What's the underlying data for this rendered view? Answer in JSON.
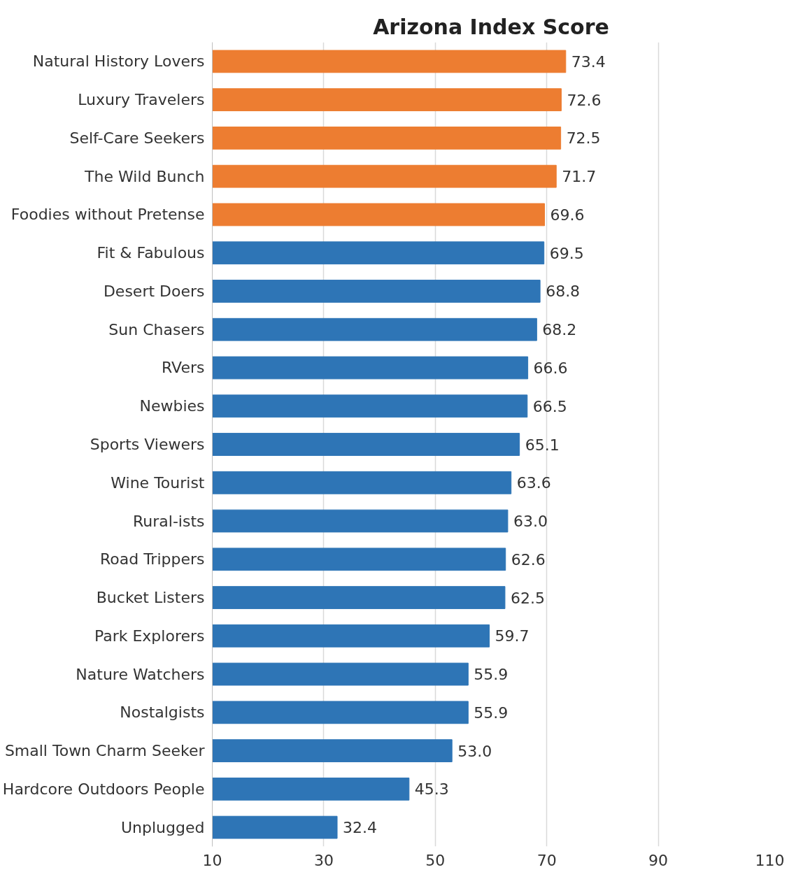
{
  "chart_data": {
    "type": "bar",
    "orientation": "horizontal",
    "title": "Arizona Index Score",
    "categories": [
      "Natural History Lovers",
      "Luxury Travelers",
      "Self-Care Seekers",
      "The Wild Bunch",
      "Foodies without Pretense",
      "Fit & Fabulous",
      "Desert Doers",
      "Sun Chasers",
      "RVers",
      "Newbies",
      "Sports Viewers",
      "Wine Tourist",
      "Rural-ists",
      "Road Trippers",
      "Bucket Listers",
      "Park Explorers",
      "Nature Watchers",
      "Nostalgists",
      "Small Town Charm Seeker",
      "Hardcore Outdoors People",
      "Unplugged"
    ],
    "values": [
      73.4,
      72.6,
      72.5,
      71.7,
      69.6,
      69.5,
      68.8,
      68.2,
      66.6,
      66.5,
      65.1,
      63.6,
      63.0,
      62.6,
      62.5,
      59.7,
      55.9,
      55.9,
      53.0,
      45.3,
      32.4
    ],
    "colors": [
      "#ed7d31",
      "#ed7d31",
      "#ed7d31",
      "#ed7d31",
      "#ed7d31",
      "#2e75b6",
      "#2e75b6",
      "#2e75b6",
      "#2e75b6",
      "#2e75b6",
      "#2e75b6",
      "#2e75b6",
      "#2e75b6",
      "#2e75b6",
      "#2e75b6",
      "#2e75b6",
      "#2e75b6",
      "#2e75b6",
      "#2e75b6",
      "#2e75b6",
      "#2e75b6"
    ],
    "value_labels": [
      "73.4",
      "72.6",
      "72.5",
      "71.7",
      "69.6",
      "69.5",
      "68.8",
      "68.2",
      "66.6",
      "66.5",
      "65.1",
      "63.6",
      "63.0",
      "62.6",
      "62.5",
      "59.7",
      "55.9",
      "55.9",
      "53.0",
      "45.3",
      "32.4"
    ],
    "xlim": [
      10,
      110
    ],
    "xticks": [
      10,
      30,
      50,
      70,
      90,
      110
    ],
    "grid": "x"
  }
}
